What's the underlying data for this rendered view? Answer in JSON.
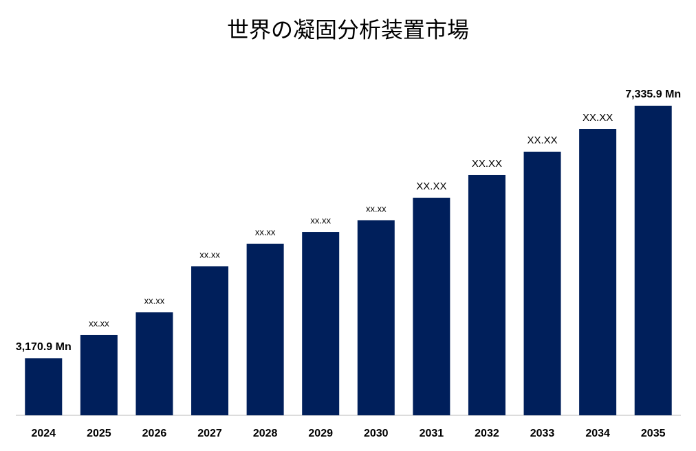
{
  "chart_data": {
    "type": "bar",
    "title": "世界の凝固分析装置市場",
    "categories": [
      "2024",
      "2025",
      "2026",
      "2027",
      "2028",
      "2029",
      "2030",
      "2031",
      "2032",
      "2033",
      "2034",
      "2035"
    ],
    "values": [
      3170.9,
      3556,
      3929,
      4687,
      5061,
      5253,
      5446,
      5819,
      6193,
      6578,
      6951,
      7335.9
    ],
    "value_labels": [
      "3,170.9 Mn",
      "xx.xx",
      "xx.xx",
      "xx.xx",
      "xx.xx",
      "xx.xx",
      "xx.xx",
      "XX.XX",
      "XX.XX",
      "XX.XX",
      "XX.XX",
      "7,335.9 Mn"
    ],
    "color": "#001f5b",
    "ylim": [
      2231.5,
      7947
    ]
  }
}
